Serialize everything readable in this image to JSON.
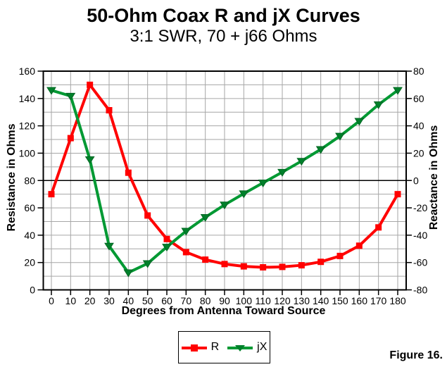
{
  "figure_label": "Figure 16.",
  "chart_data": {
    "type": "line",
    "title": "50-Ohm Coax R and jX Curves",
    "subtitle": "3:1 SWR, 70 + j66 Ohms",
    "xlabel": "Degrees from Antenna Toward Source",
    "x": [
      0,
      10,
      20,
      30,
      40,
      50,
      60,
      70,
      80,
      90,
      100,
      110,
      120,
      130,
      140,
      150,
      160,
      170,
      180
    ],
    "axes": {
      "left": {
        "label": "Resistance in Ohms",
        "min": 0,
        "max": 160,
        "tick_step": 20
      },
      "right": {
        "label": "Reactance in Ohms",
        "min": -80,
        "max": 80,
        "tick_step": 20
      }
    },
    "grid": {
      "x_step": 10,
      "y_step": 10,
      "color": "#a6a6a6",
      "zero_reactance_line": true
    },
    "series": [
      {
        "name": "R",
        "axis": "left",
        "color": "#ff0000",
        "marker": "square",
        "marker_color": "#ff0000",
        "values": [
          70,
          111,
          150,
          131.4,
          85.7,
          54.4,
          37.2,
          27.6,
          22.1,
          18.9,
          17.2,
          16.5,
          16.8,
          18.0,
          20.5,
          24.8,
          32.3,
          45.7,
          70
        ]
      },
      {
        "name": "jX",
        "axis": "right",
        "color": "#009933",
        "marker": "triangle-down",
        "marker_color": "#00802b",
        "values": [
          66,
          61.8,
          15.3,
          -47.9,
          -67.4,
          -60.7,
          -48.6,
          -37.0,
          -26.9,
          -17.8,
          -9.6,
          -1.7,
          6.1,
          14.2,
          22.8,
          32.5,
          43.4,
          55.5,
          66
        ]
      }
    ],
    "legend": {
      "position": "bottom-center",
      "entries": [
        "R",
        "jX"
      ]
    }
  }
}
